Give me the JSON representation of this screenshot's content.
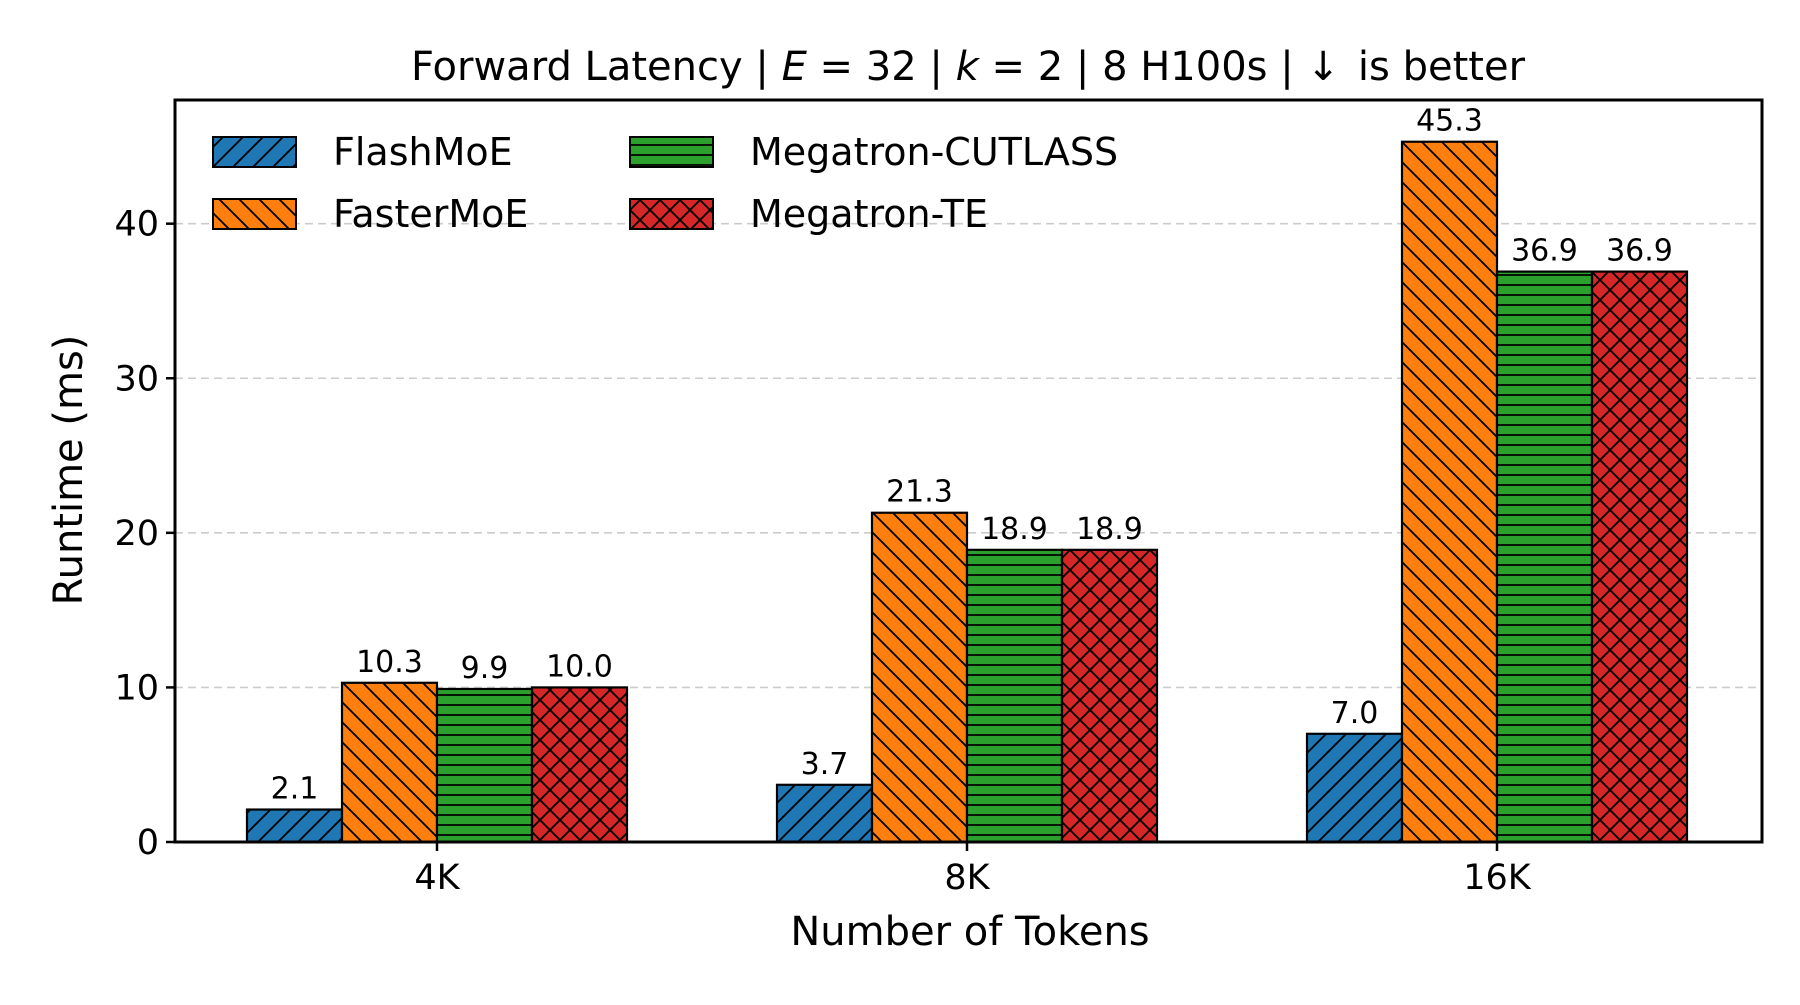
{
  "chart_data": {
    "type": "bar",
    "title": {
      "prefix": "Forward Latency | ",
      "e_var": "E",
      "e_val": " = 32 | ",
      "k_var": "k",
      "k_val": " = 2 | 8 H100s | ",
      "arrow": "↓",
      "suffix": "is better"
    },
    "xlabel": "Number of Tokens",
    "ylabel": "Runtime (ms)",
    "ylim": [
      0,
      48
    ],
    "yticks": [
      0,
      10,
      20,
      30,
      40
    ],
    "grid": "horizontal dashed",
    "legend_position": "top-left",
    "categories": [
      "4K",
      "8K",
      "16K"
    ],
    "series": [
      {
        "name": "FlashMoE",
        "color": "#1f77b4",
        "hatch": "diagonal-up",
        "values": [
          2.1,
          3.7,
          7.0
        ],
        "labels": [
          "2.1",
          "3.7",
          "7.0"
        ]
      },
      {
        "name": "FasterMoE",
        "color": "#ff7f0e",
        "hatch": "diagonal-down",
        "values": [
          10.3,
          21.3,
          45.3
        ],
        "labels": [
          "10.3",
          "21.3",
          "45.3"
        ]
      },
      {
        "name": "Megatron-CUTLASS",
        "color": "#2ca02c",
        "hatch": "horizontal",
        "values": [
          9.9,
          18.9,
          36.9
        ],
        "labels": [
          "9.9",
          "18.9",
          "36.9"
        ]
      },
      {
        "name": "Megatron-TE",
        "color": "#d62728",
        "hatch": "cross",
        "values": [
          10.0,
          18.9,
          36.9
        ],
        "labels": [
          "10.0",
          "18.9",
          "36.9"
        ]
      }
    ]
  }
}
